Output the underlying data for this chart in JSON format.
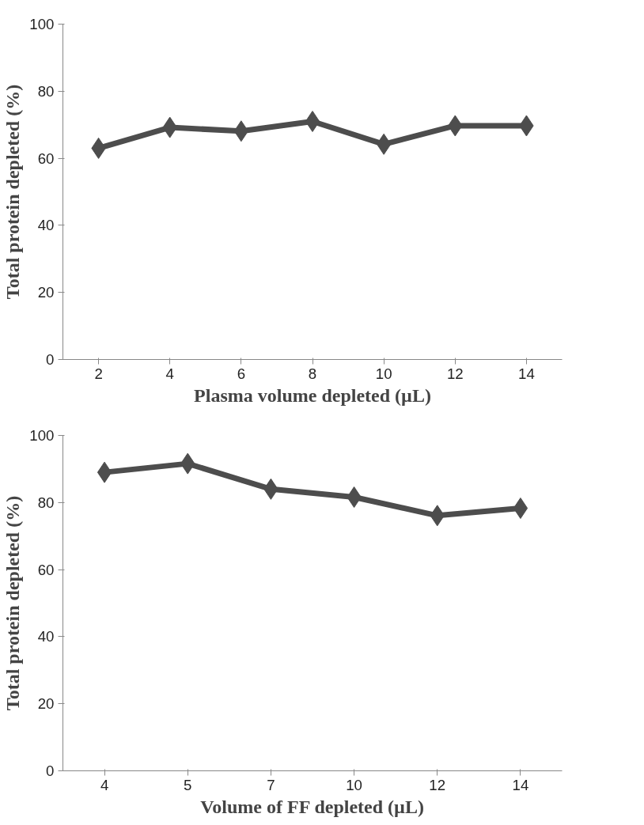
{
  "chart_data": [
    {
      "type": "line",
      "xlabel": "Plasma volume depleted (µL)",
      "ylabel": "Total protein depleted (%)",
      "categories": [
        "2",
        "4",
        "6",
        "8",
        "10",
        "12",
        "14"
      ],
      "series": [
        {
          "color": "#4d4d4d",
          "values": [
            63,
            69.2,
            68.1,
            71,
            64.2,
            69.7,
            69.7
          ]
        }
      ],
      "ylim": [
        0,
        100
      ],
      "yticks": [
        0,
        20,
        40,
        60,
        80,
        100
      ],
      "marker": "diamond",
      "line_style": "solid",
      "grid": false
    },
    {
      "type": "line",
      "xlabel": "Volume of FF depleted (µL)",
      "ylabel": "Total protein depleted (%)",
      "categories": [
        "4",
        "5",
        "7",
        "10",
        "12",
        "14"
      ],
      "series": [
        {
          "color": "#4d4d4d",
          "values": [
            89,
            91.6,
            84,
            81.6,
            76.1,
            78.3
          ]
        }
      ],
      "ylim": [
        0,
        100
      ],
      "yticks": [
        0,
        20,
        40,
        60,
        80,
        100
      ],
      "marker": "diamond",
      "line_style": "solid",
      "grid": false
    }
  ]
}
